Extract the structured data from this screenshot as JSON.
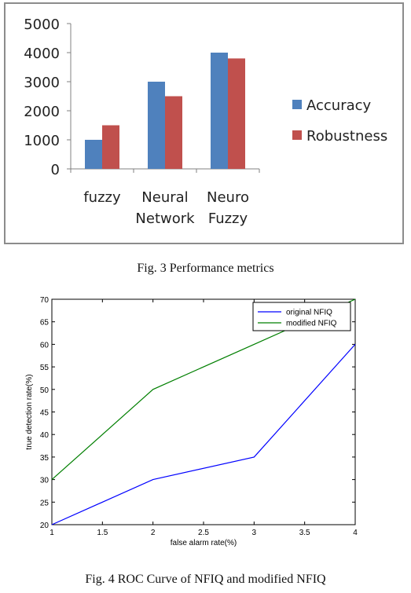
{
  "captions": {
    "fig3": "Fig. 3 Performance metrics",
    "fig4": "Fig. 4 ROC Curve of NFIQ and modified NFIQ"
  },
  "chart_data": [
    {
      "type": "bar",
      "categories": [
        [
          "fuzzy"
        ],
        [
          "Neural",
          "Network"
        ],
        [
          "Neuro",
          "Fuzzy"
        ]
      ],
      "series": [
        {
          "name": "Accuracy",
          "values": [
            1000,
            3000,
            4000
          ],
          "color": "#4f81bd"
        },
        {
          "name": "Robustness",
          "values": [
            1500,
            2500,
            3800
          ],
          "color": "#c0504d"
        }
      ],
      "ylim": [
        0,
        5000
      ],
      "yticks": [
        0,
        1000,
        2000,
        3000,
        4000,
        5000
      ],
      "grid": false,
      "legend": "right"
    },
    {
      "type": "line",
      "x": [
        1,
        2,
        3,
        4
      ],
      "series": [
        {
          "name": "original NFIQ",
          "values": [
            20,
            30,
            35,
            60
          ],
          "color": "#0000ff"
        },
        {
          "name": "modified NFIQ",
          "values": [
            30,
            50,
            60,
            70
          ],
          "color": "#007f00"
        }
      ],
      "xlabel": "false alarm rate(%)",
      "ylabel": "true detection rate(%)",
      "xlim": [
        1,
        4
      ],
      "ylim": [
        20,
        70
      ],
      "xticks": [
        "1",
        "1.5",
        "2",
        "2.5",
        "3",
        "3.5",
        "4"
      ],
      "yticks": [
        "20",
        "25",
        "30",
        "35",
        "40",
        "45",
        "50",
        "55",
        "60",
        "65",
        "70"
      ],
      "grid": false,
      "legend": "top-right"
    }
  ]
}
